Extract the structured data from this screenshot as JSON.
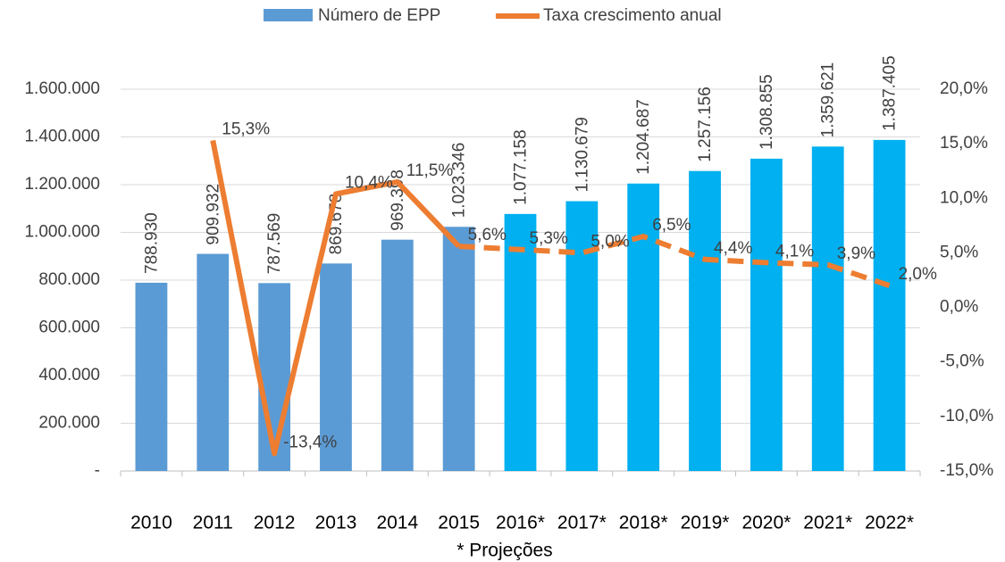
{
  "chart_data": {
    "type": "bar_line",
    "footnote": "* Projeções",
    "categories": [
      "2010",
      "2011",
      "2012",
      "2013",
      "2014",
      "2015",
      "2016*",
      "2017*",
      "2018*",
      "2019*",
      "2020*",
      "2021*",
      "2022*"
    ],
    "series": [
      {
        "name": "Número de EPP",
        "type": "bar",
        "color": "#5b9bd5",
        "colors": [
          "#5b9bd5",
          "#5b9bd5",
          "#5b9bd5",
          "#5b9bd5",
          "#5b9bd5",
          "#5b9bd5",
          "#00b0f0",
          "#00b0f0",
          "#00b0f0",
          "#00b0f0",
          "#00b0f0",
          "#00b0f0",
          "#00b0f0"
        ],
        "values": [
          788930,
          909932,
          787569,
          869678,
          969398,
          1023346,
          1077158,
          1130679,
          1204687,
          1257156,
          1308855,
          1359621,
          1387405
        ],
        "value_labels": [
          "788.930",
          "909.932",
          "787.569",
          "869.678",
          "969.398",
          "1.023.346",
          "1.077.158",
          "1.130.679",
          "1.204.687",
          "1.257.156",
          "1.308.855",
          "1.359.621",
          "1.387.405"
        ]
      },
      {
        "name": "Taxa crescimento anual",
        "type": "line",
        "axis": "y2",
        "color": "#ed7d31",
        "dash_from": "2015",
        "values": [
          null,
          15.3,
          -13.4,
          10.4,
          11.5,
          5.6,
          5.3,
          5.0,
          6.5,
          4.4,
          4.1,
          3.9,
          2.0
        ],
        "value_labels": [
          null,
          "15,3%",
          "-13,4%",
          "10,4%",
          "11,5%",
          "5,6%",
          "5,3%",
          "5,0%",
          "6,5%",
          "4,4%",
          "4,1%",
          "3,9%",
          "2,0%"
        ]
      }
    ],
    "ylim": [
      0,
      1600000
    ],
    "yticks": [
      {
        "value": 0,
        "label": "-"
      },
      {
        "value": 200000,
        "label": "200.000"
      },
      {
        "value": 400000,
        "label": "400.000"
      },
      {
        "value": 600000,
        "label": "600.000"
      },
      {
        "value": 800000,
        "label": "800.000"
      },
      {
        "value": 1000000,
        "label": "1.000.000"
      },
      {
        "value": 1200000,
        "label": "1.200.000"
      },
      {
        "value": 1400000,
        "label": "1.400.000"
      },
      {
        "value": 1600000,
        "label": "1.600.000"
      }
    ],
    "y2lim": [
      -15,
      20
    ],
    "y2ticks": [
      {
        "value": -15,
        "label": "-15,0%"
      },
      {
        "value": -10,
        "label": "-10,0%"
      },
      {
        "value": -5,
        "label": "-5,0%"
      },
      {
        "value": 0,
        "label": "0,0%"
      },
      {
        "value": 5,
        "label": "5,0%"
      },
      {
        "value": 10,
        "label": "10,0%"
      },
      {
        "value": 15,
        "label": "15,0%"
      },
      {
        "value": 20,
        "label": "20,0%"
      }
    ],
    "grid": true,
    "legend": "top"
  }
}
